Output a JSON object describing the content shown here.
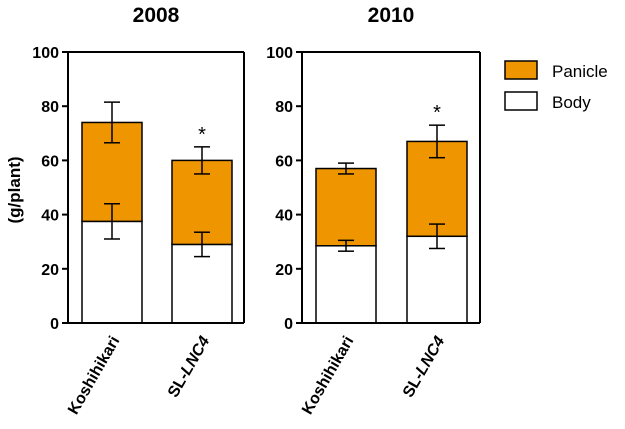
{
  "chart_data": {
    "type": "bar",
    "stacked": true,
    "ylabel": "(g/plant)",
    "ylim": [
      0,
      100
    ],
    "yticks": [
      0,
      20,
      40,
      60,
      80,
      100
    ],
    "legend": [
      {
        "name": "Panicle",
        "color": "#ef9500"
      },
      {
        "name": "Body",
        "color": "#ffffff"
      }
    ],
    "panels": [
      {
        "title": "2008",
        "categories": [
          {
            "prefix": "Koshihikari",
            "italic": ""
          },
          {
            "prefix": "SL-",
            "italic": "LNC4"
          }
        ],
        "series": [
          {
            "name": "Body",
            "values": [
              37.5,
              29
            ],
            "err": [
              6.5,
              4.5
            ]
          },
          {
            "name": "Panicle",
            "values": [
              36.5,
              31
            ],
            "err": [
              7.5,
              5
            ]
          }
        ],
        "significance": [
          "",
          "*"
        ]
      },
      {
        "title": "2010",
        "categories": [
          {
            "prefix": "Koshihikari",
            "italic": ""
          },
          {
            "prefix": "SL-",
            "italic": "LNC4"
          }
        ],
        "series": [
          {
            "name": "Body",
            "values": [
              28.5,
              32
            ],
            "err": [
              2,
              4.5
            ]
          },
          {
            "name": "Panicle",
            "values": [
              28.5,
              35
            ],
            "err": [
              2,
              6
            ]
          }
        ],
        "significance": [
          "",
          "*"
        ]
      }
    ]
  }
}
